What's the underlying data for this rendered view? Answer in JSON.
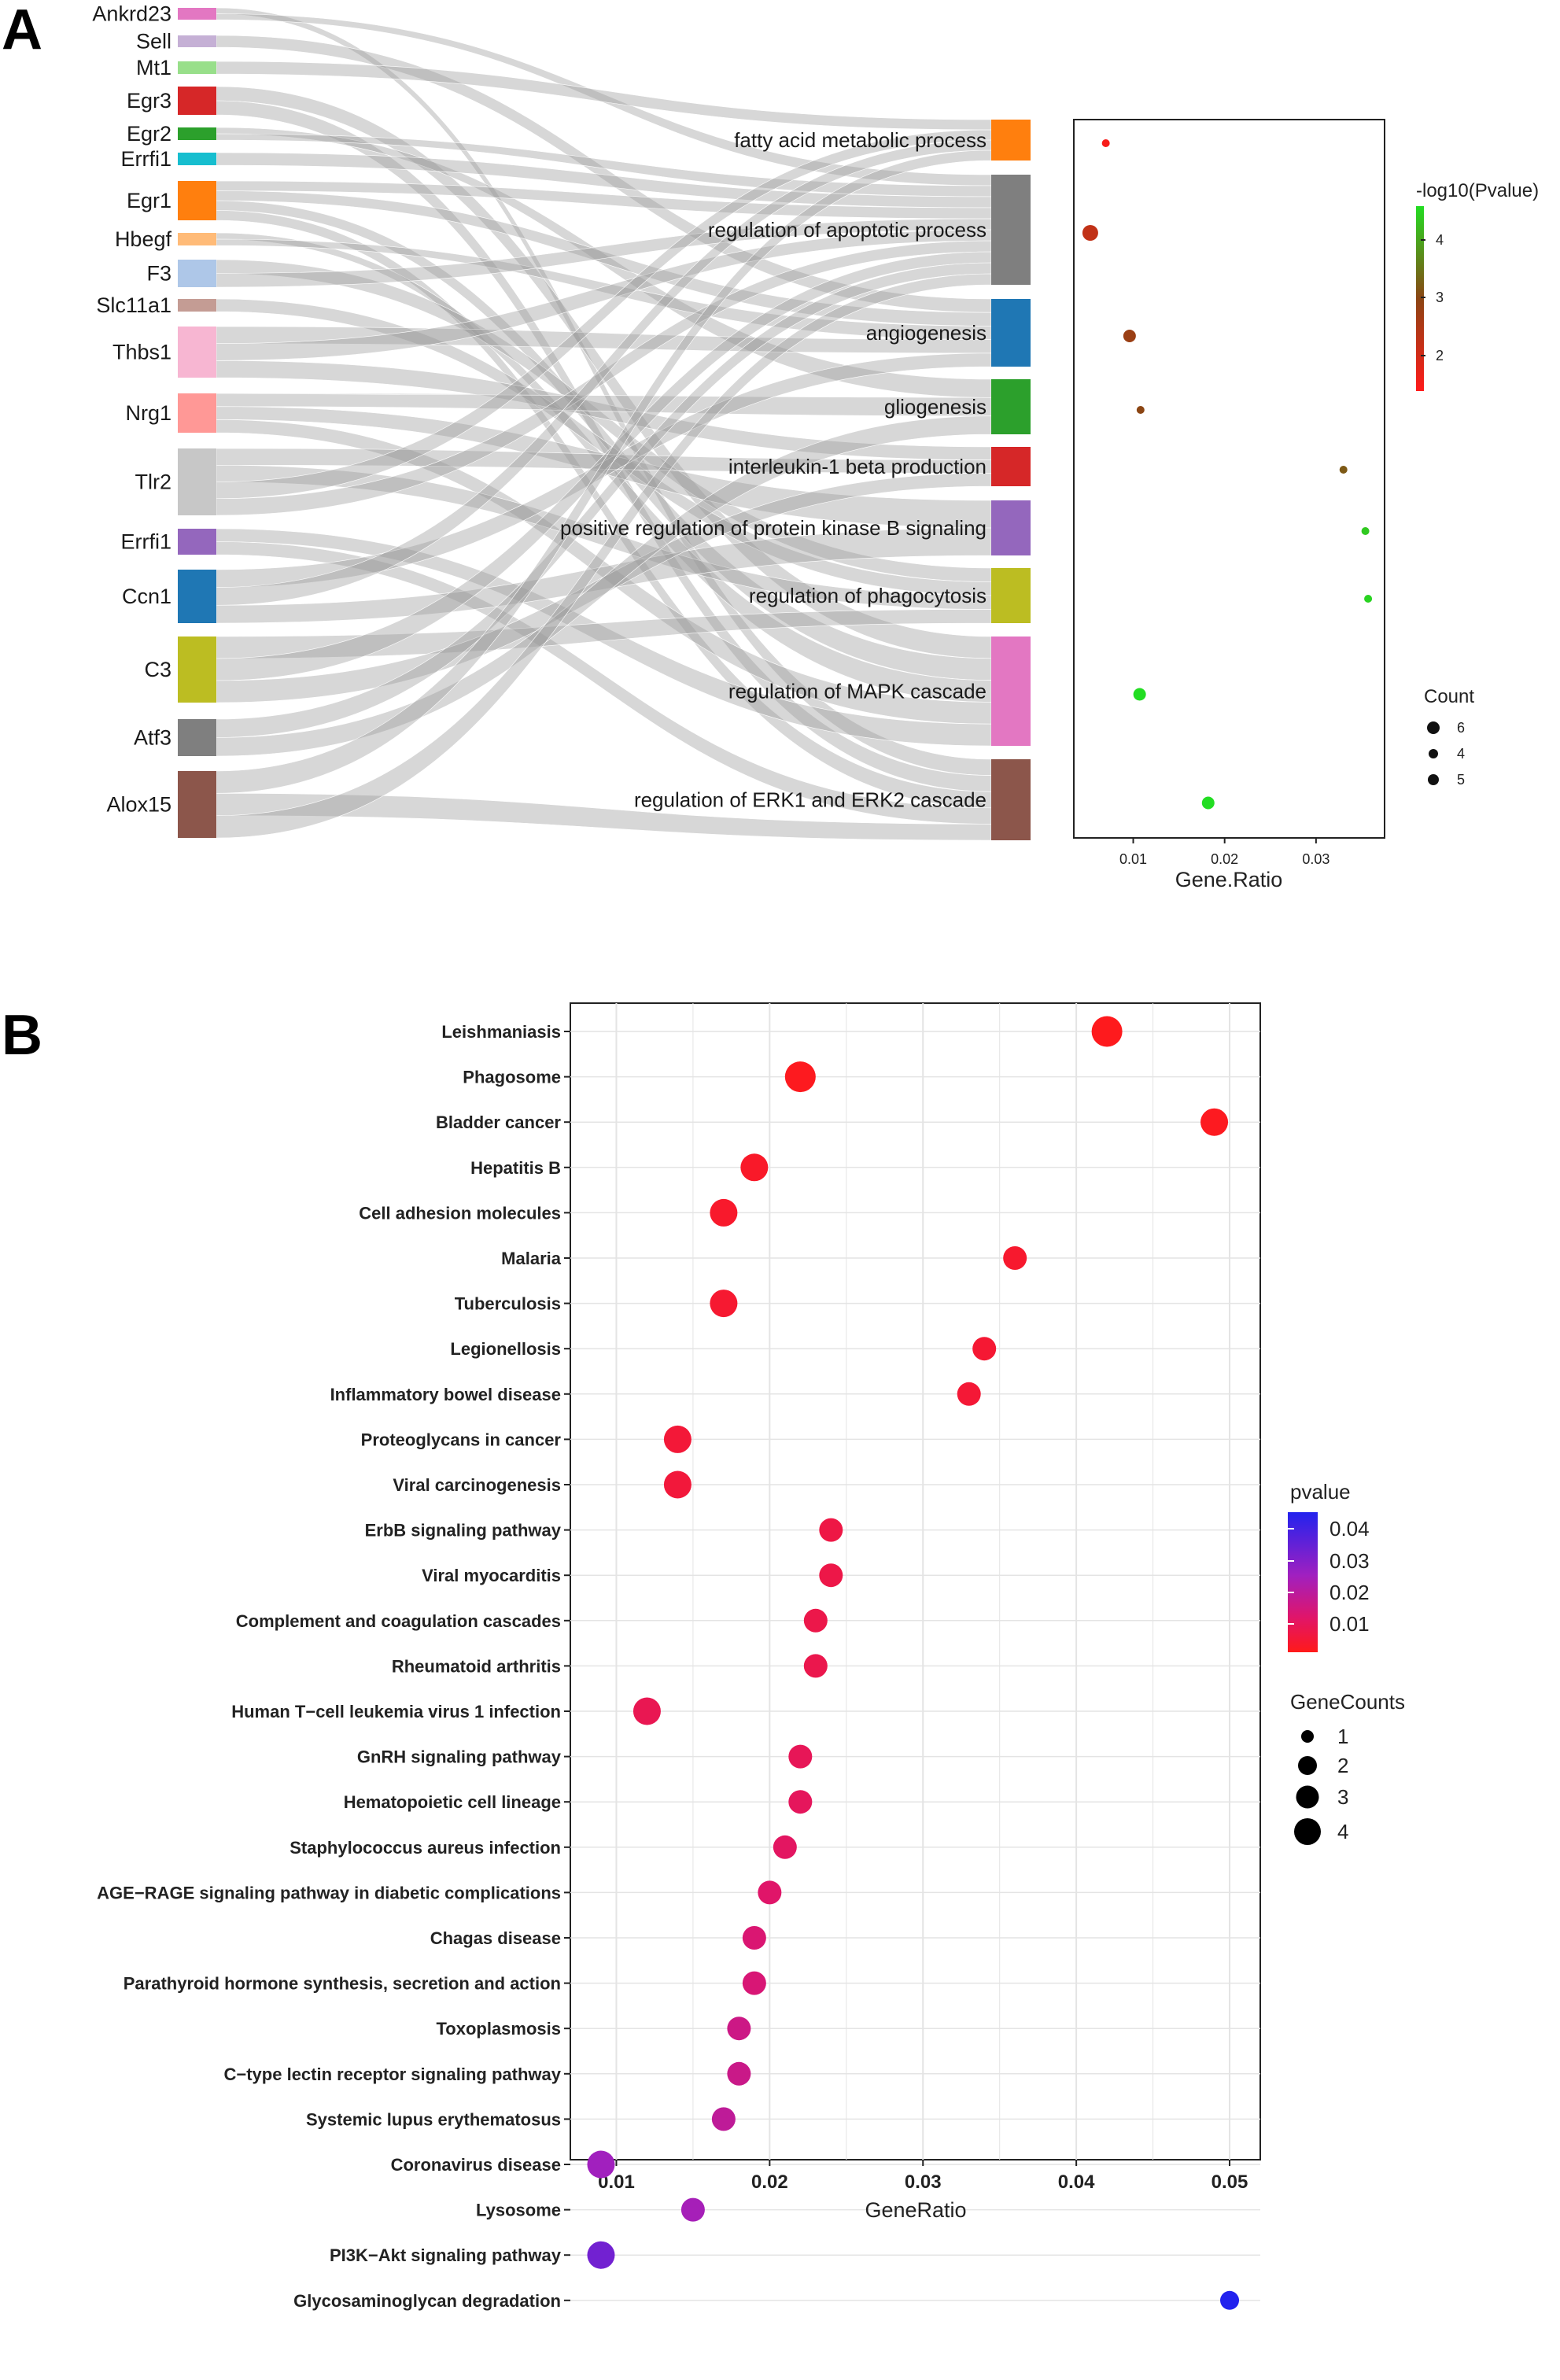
{
  "panels": {
    "a_label": "A",
    "b_label": "B"
  },
  "chart_data": [
    {
      "type": "sankey",
      "panel": "A",
      "genes": [
        {
          "name": "Ankrd23",
          "color": "#E377C2"
        },
        {
          "name": "Sell",
          "color": "#C5B0D5"
        },
        {
          "name": "Mt1",
          "color": "#98DF8A"
        },
        {
          "name": "Egr3",
          "color": "#D62728"
        },
        {
          "name": "Egr2",
          "color": "#2CA02C"
        },
        {
          "name": "Errfi1",
          "color": "#17BECF"
        },
        {
          "name": "Egr1",
          "color": "#FF7F0E"
        },
        {
          "name": "Hbegf",
          "color": "#FFBB78"
        },
        {
          "name": "F3",
          "color": "#AEC7E8"
        },
        {
          "name": "Slc11a1",
          "color": "#C49C94"
        },
        {
          "name": "Thbs1",
          "color": "#F7B6D2"
        },
        {
          "name": "Nrg1",
          "color": "#FF9896"
        },
        {
          "name": "Tlr2",
          "color": "#C7C7C7"
        },
        {
          "name": "Errfi1",
          "color": "#9467BD"
        },
        {
          "name": "Ccn1",
          "color": "#1F77B4"
        },
        {
          "name": "C3",
          "color": "#BCBD22"
        },
        {
          "name": "Atf3",
          "color": "#7F7F7F"
        },
        {
          "name": "Alox15",
          "color": "#8C564B"
        }
      ],
      "terms": [
        {
          "name": "fatty acid metabolic process",
          "color": "#FF7F0E"
        },
        {
          "name": "regulation of apoptotic process",
          "color": "#7F7F7F"
        },
        {
          "name": "angiogenesis",
          "color": "#1F77B4"
        },
        {
          "name": "gliogenesis",
          "color": "#2CA02C"
        },
        {
          "name": "interleukin-1 beta production",
          "color": "#D62728"
        },
        {
          "name": "positive regulation of protein kinase B signaling",
          "color": "#9467BD"
        },
        {
          "name": "regulation of phagocytosis",
          "color": "#BCBD22"
        },
        {
          "name": "regulation of MAPK cascade",
          "color": "#E377C2"
        },
        {
          "name": "regulation of ERK1 and ERK2 cascade",
          "color": "#8C564B"
        }
      ]
    },
    {
      "type": "scatter",
      "panel": "A-dot",
      "xlabel": "Gene.Ratio",
      "xlim": [
        0.0035,
        0.0375
      ],
      "xticks": [
        0.01,
        0.02,
        0.03
      ],
      "xtick_labels": [
        "0.01",
        "0.02",
        "0.03"
      ],
      "points": [
        {
          "term": "fatty acid metabolic process",
          "x": 0.007,
          "log10p": 1.6,
          "count": 4
        },
        {
          "term": "regulation of apoptotic process",
          "x": 0.0053,
          "log10p": 2.3,
          "count": 6
        },
        {
          "term": "angiogenesis",
          "x": 0.0096,
          "log10p": 2.8,
          "count": 5
        },
        {
          "term": "gliogenesis",
          "x": 0.0108,
          "log10p": 3.0,
          "count": 4
        },
        {
          "term": "interleukin-1 beta production",
          "x": 0.033,
          "log10p": 3.2,
          "count": 4
        },
        {
          "term": "positive regulation of protein kinase B signaling",
          "x": 0.0354,
          "log10p": 4.3,
          "count": 4
        },
        {
          "term": "regulation of phagocytosis",
          "x": 0.0357,
          "log10p": 4.4,
          "count": 4
        },
        {
          "term": "regulation of MAPK cascade",
          "x": 0.0107,
          "log10p": 4.5,
          "count": 5
        },
        {
          "term": "regulation of ERK1 and ERK2 cascade",
          "x": 0.0182,
          "log10p": 4.5,
          "count": 5
        }
      ],
      "color_legend": {
        "title": "-log10(Pvalue)",
        "labels": [
          "4",
          "3",
          "2"
        ],
        "colors": [
          "#22DD22",
          "#8B4513",
          "#FF1A1A"
        ]
      },
      "size_legend": {
        "title": "Count",
        "labels": [
          "6",
          "4",
          "5"
        ]
      }
    },
    {
      "type": "scatter",
      "panel": "B",
      "xlabel": "GeneRatio",
      "xlim": [
        0.007,
        0.052
      ],
      "xticks": [
        0.01,
        0.02,
        0.03,
        0.04,
        0.05
      ],
      "xtick_labels": [
        "0.01",
        "0.02",
        "0.03",
        "0.04",
        "0.05"
      ],
      "points": [
        {
          "term": "Leishmaniasis",
          "x": 0.042,
          "pvalue": 0.0006,
          "counts": 4
        },
        {
          "term": "Phagosome",
          "x": 0.022,
          "pvalue": 0.001,
          "counts": 4
        },
        {
          "term": "Bladder cancer",
          "x": 0.049,
          "pvalue": 0.0012,
          "counts": 3
        },
        {
          "term": "Hepatitis B",
          "x": 0.019,
          "pvalue": 0.003,
          "counts": 3
        },
        {
          "term": "Cell adhesion molecules",
          "x": 0.017,
          "pvalue": 0.0035,
          "counts": 3
        },
        {
          "term": "Malaria",
          "x": 0.036,
          "pvalue": 0.004,
          "counts": 2
        },
        {
          "term": "Tuberculosis",
          "x": 0.017,
          "pvalue": 0.0045,
          "counts": 3
        },
        {
          "term": "Legionellosis",
          "x": 0.034,
          "pvalue": 0.005,
          "counts": 2
        },
        {
          "term": "Inflammatory bowel disease",
          "x": 0.033,
          "pvalue": 0.0055,
          "counts": 2
        },
        {
          "term": "Proteoglycans in cancer",
          "x": 0.014,
          "pvalue": 0.006,
          "counts": 3
        },
        {
          "term": "Viral carcinogenesis",
          "x": 0.014,
          "pvalue": 0.0065,
          "counts": 3
        },
        {
          "term": "ErbB signaling pathway",
          "x": 0.024,
          "pvalue": 0.0085,
          "counts": 2
        },
        {
          "term": "Viral myocarditis",
          "x": 0.024,
          "pvalue": 0.009,
          "counts": 2
        },
        {
          "term": "Complement and coagulation cascades",
          "x": 0.023,
          "pvalue": 0.0095,
          "counts": 2
        },
        {
          "term": "Rheumatoid arthritis",
          "x": 0.023,
          "pvalue": 0.01,
          "counts": 2
        },
        {
          "term": "Human T−cell leukemia virus 1 infection",
          "x": 0.012,
          "pvalue": 0.011,
          "counts": 3
        },
        {
          "term": "GnRH signaling pathway",
          "x": 0.022,
          "pvalue": 0.012,
          "counts": 2
        },
        {
          "term": "Hematopoietic cell lineage",
          "x": 0.022,
          "pvalue": 0.013,
          "counts": 2
        },
        {
          "term": "Staphylococcus aureus infection",
          "x": 0.021,
          "pvalue": 0.014,
          "counts": 2
        },
        {
          "term": "AGE−RAGE signaling pathway in diabetic complications",
          "x": 0.02,
          "pvalue": 0.0155,
          "counts": 2
        },
        {
          "term": "Chagas disease",
          "x": 0.019,
          "pvalue": 0.017,
          "counts": 2
        },
        {
          "term": "Parathyroid hormone synthesis, secretion and action",
          "x": 0.019,
          "pvalue": 0.0175,
          "counts": 2
        },
        {
          "term": "Toxoplasmosis",
          "x": 0.018,
          "pvalue": 0.02,
          "counts": 2
        },
        {
          "term": "C−type lectin receptor signaling pathway",
          "x": 0.018,
          "pvalue": 0.0205,
          "counts": 2
        },
        {
          "term": "Systemic lupus erythematosus",
          "x": 0.017,
          "pvalue": 0.023,
          "counts": 2
        },
        {
          "term": "Coronavirus disease",
          "x": 0.009,
          "pvalue": 0.029,
          "counts": 3
        },
        {
          "term": "Lysosome",
          "x": 0.015,
          "pvalue": 0.028,
          "counts": 2
        },
        {
          "term": "PI3K−Akt signaling pathway",
          "x": 0.009,
          "pvalue": 0.035,
          "counts": 3
        },
        {
          "term": "Glycosaminoglycan degradation",
          "x": 0.05,
          "pvalue": 0.045,
          "counts": 1
        }
      ],
      "color_legend": {
        "title": "pvalue",
        "labels": [
          "0.04",
          "0.03",
          "0.02",
          "0.01"
        ],
        "colors": [
          "#2222EE",
          "#FF1A1A"
        ]
      },
      "size_legend": {
        "title": "GeneCounts",
        "labels": [
          "1",
          "2",
          "3",
          "4"
        ]
      }
    }
  ]
}
